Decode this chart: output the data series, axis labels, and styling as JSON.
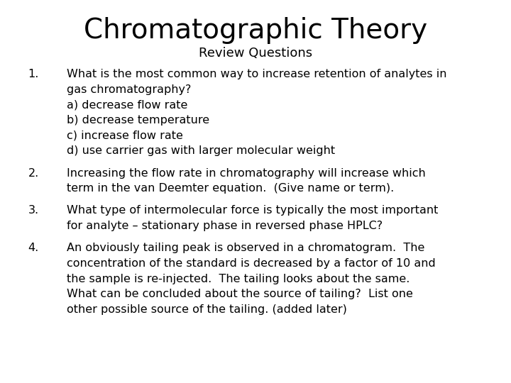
{
  "title": "Chromatographic Theory",
  "subtitle": "Review Questions",
  "background_color": "#ffffff",
  "text_color": "#000000",
  "title_fontsize": 28,
  "subtitle_fontsize": 13,
  "body_fontsize": 11.5,
  "number_fontsize": 11.5,
  "font_family": "DejaVu Sans",
  "questions": [
    {
      "number": "1.",
      "lines": [
        "What is the most common way to increase retention of analytes in",
        "gas chromatography?",
        "a) decrease flow rate",
        "b) decrease temperature",
        "c) increase flow rate",
        "d) use carrier gas with larger molecular weight"
      ]
    },
    {
      "number": "2.",
      "lines": [
        "Increasing the flow rate in chromatography will increase which",
        "term in the van Deemter equation.  (Give name or term)."
      ]
    },
    {
      "number": "3.",
      "lines": [
        "What type of intermolecular force is typically the most important",
        "for analyte – stationary phase in reversed phase HPLC?"
      ]
    },
    {
      "number": "4.",
      "lines": [
        "An obviously tailing peak is observed in a chromatogram.  The",
        "concentration of the standard is decreased by a factor of 10 and",
        "the sample is re-injected.  The tailing looks about the same.",
        "What can be concluded about the source of tailing?  List one",
        "other possible source of the tailing. (added later)"
      ]
    }
  ]
}
